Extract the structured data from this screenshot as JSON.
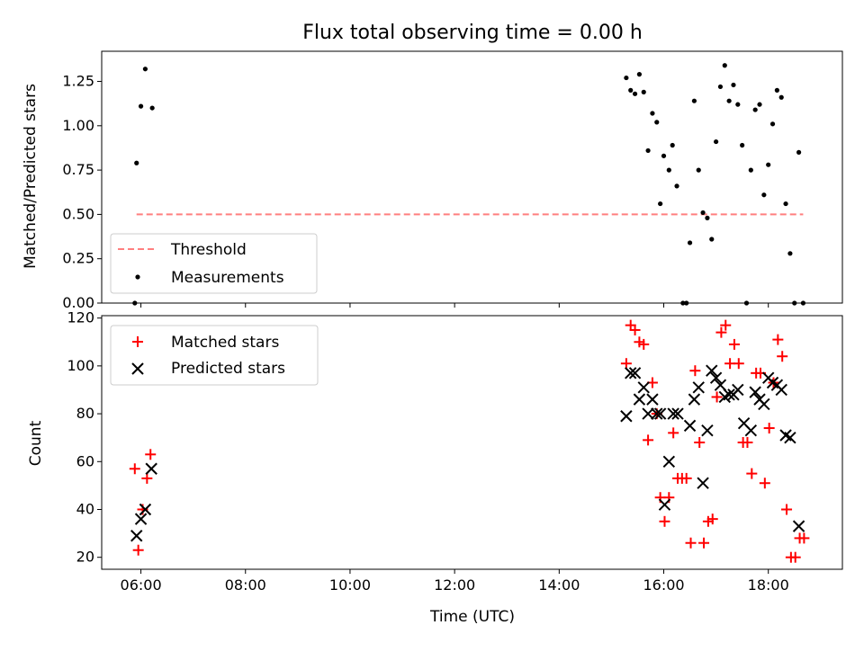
{
  "chart_data": [
    {
      "type": "scatter",
      "title": "Flux total observing time = 0.00 h",
      "xlabel": "",
      "ylabel": "Matched/Predicted stars",
      "xlim": [
        "05:15",
        "19:25"
      ],
      "ylim": [
        0,
        1.42
      ],
      "yticks": [
        "0.00",
        "0.25",
        "0.50",
        "0.75",
        "1.00",
        "1.25"
      ],
      "legend": {
        "position": "lower-left",
        "entries": [
          "Threshold",
          "Measurements"
        ]
      },
      "colors": {
        "threshold": "#ff7f7f",
        "measurements": "#000000"
      },
      "threshold": {
        "name": "Threshold",
        "value": 0.5,
        "x": [
          "05:55",
          "18:40"
        ]
      },
      "series": [
        {
          "name": "Measurements",
          "marker": "dot",
          "points": [
            [
              "05:53",
              0.0
            ],
            [
              "05:55",
              0.79
            ],
            [
              "06:00",
              1.11
            ],
            [
              "06:05",
              1.32
            ],
            [
              "06:13",
              1.1
            ],
            [
              "15:17",
              1.27
            ],
            [
              "15:22",
              1.2
            ],
            [
              "15:27",
              1.18
            ],
            [
              "15:32",
              1.29
            ],
            [
              "15:37",
              1.19
            ],
            [
              "15:42",
              0.86
            ],
            [
              "15:47",
              1.07
            ],
            [
              "15:52",
              1.02
            ],
            [
              "15:56",
              0.56
            ],
            [
              "16:00",
              0.83
            ],
            [
              "16:06",
              0.75
            ],
            [
              "16:10",
              0.89
            ],
            [
              "16:15",
              0.66
            ],
            [
              "16:22",
              0.0
            ],
            [
              "16:26",
              0.0
            ],
            [
              "16:30",
              0.34
            ],
            [
              "16:35",
              1.14
            ],
            [
              "16:40",
              0.75
            ],
            [
              "16:45",
              0.51
            ],
            [
              "16:50",
              0.48
            ],
            [
              "16:55",
              0.36
            ],
            [
              "17:00",
              0.91
            ],
            [
              "17:05",
              1.22
            ],
            [
              "17:10",
              1.34
            ],
            [
              "17:15",
              1.14
            ],
            [
              "17:20",
              1.23
            ],
            [
              "17:25",
              1.12
            ],
            [
              "17:30",
              0.89
            ],
            [
              "17:35",
              0.0
            ],
            [
              "17:40",
              0.75
            ],
            [
              "17:45",
              1.09
            ],
            [
              "17:50",
              1.12
            ],
            [
              "17:55",
              0.61
            ],
            [
              "18:00",
              0.78
            ],
            [
              "18:05",
              1.01
            ],
            [
              "18:10",
              1.2
            ],
            [
              "18:15",
              1.16
            ],
            [
              "18:20",
              0.56
            ],
            [
              "18:25",
              0.28
            ],
            [
              "18:30",
              0.0
            ],
            [
              "18:35",
              0.85
            ],
            [
              "18:40",
              0.0
            ]
          ]
        }
      ]
    },
    {
      "type": "scatter",
      "title": "",
      "xlabel": "Time (UTC)",
      "ylabel": "Count",
      "xlim": [
        "05:15",
        "19:25"
      ],
      "ylim": [
        15,
        121
      ],
      "yticks": [
        "20",
        "40",
        "60",
        "80",
        "100",
        "120"
      ],
      "xticks": [
        "06:00",
        "08:00",
        "10:00",
        "12:00",
        "14:00",
        "16:00",
        "18:00"
      ],
      "legend": {
        "position": "upper-left",
        "entries": [
          "Matched stars",
          "Predicted stars"
        ]
      },
      "colors": {
        "matched": "#ff0000",
        "predicted": "#000000"
      },
      "series": [
        {
          "name": "Matched stars",
          "marker": "plus",
          "points": [
            [
              "05:53",
              57
            ],
            [
              "05:57",
              23
            ],
            [
              "06:02",
              40
            ],
            [
              "06:07",
              53
            ],
            [
              "06:11",
              63
            ],
            [
              "15:17",
              101
            ],
            [
              "15:22",
              117
            ],
            [
              "15:27",
              115
            ],
            [
              "15:32",
              110
            ],
            [
              "15:37",
              109
            ],
            [
              "15:42",
              69
            ],
            [
              "15:47",
              93
            ],
            [
              "15:52",
              80
            ],
            [
              "15:56",
              45
            ],
            [
              "16:01",
              35
            ],
            [
              "16:06",
              45
            ],
            [
              "16:11",
              72
            ],
            [
              "16:16",
              53
            ],
            [
              "16:21",
              53
            ],
            [
              "16:26",
              53
            ],
            [
              "16:31",
              26
            ],
            [
              "16:36",
              98
            ],
            [
              "16:41",
              68
            ],
            [
              "16:46",
              26
            ],
            [
              "16:51",
              35
            ],
            [
              "16:56",
              36
            ],
            [
              "17:01",
              87
            ],
            [
              "17:06",
              114
            ],
            [
              "17:11",
              117
            ],
            [
              "17:16",
              101
            ],
            [
              "17:21",
              109
            ],
            [
              "17:26",
              101
            ],
            [
              "17:31",
              68
            ],
            [
              "17:36",
              68
            ],
            [
              "17:41",
              55
            ],
            [
              "17:46",
              97
            ],
            [
              "17:51",
              97
            ],
            [
              "17:56",
              51
            ],
            [
              "18:01",
              74
            ],
            [
              "18:06",
              93
            ],
            [
              "18:11",
              111
            ],
            [
              "18:16",
              104
            ],
            [
              "18:21",
              40
            ],
            [
              "18:26",
              20
            ],
            [
              "18:31",
              20
            ],
            [
              "18:36",
              28
            ],
            [
              "18:41",
              28
            ]
          ]
        },
        {
          "name": "Predicted stars",
          "marker": "x",
          "points": [
            [
              "05:55",
              29
            ],
            [
              "06:00",
              36
            ],
            [
              "06:05",
              40
            ],
            [
              "06:12",
              57
            ],
            [
              "15:17",
              79
            ],
            [
              "15:22",
              97
            ],
            [
              "15:27",
              97
            ],
            [
              "15:32",
              86
            ],
            [
              "15:37",
              91
            ],
            [
              "15:42",
              80
            ],
            [
              "15:47",
              86
            ],
            [
              "15:52",
              80
            ],
            [
              "15:56",
              80
            ],
            [
              "16:01",
              42
            ],
            [
              "16:06",
              60
            ],
            [
              "16:11",
              80
            ],
            [
              "16:16",
              80
            ],
            [
              "16:30",
              75
            ],
            [
              "16:35",
              86
            ],
            [
              "16:40",
              91
            ],
            [
              "16:45",
              51
            ],
            [
              "16:50",
              73
            ],
            [
              "16:55",
              98
            ],
            [
              "17:00",
              95
            ],
            [
              "17:05",
              92
            ],
            [
              "17:10",
              87
            ],
            [
              "17:15",
              88
            ],
            [
              "17:20",
              88
            ],
            [
              "17:25",
              90
            ],
            [
              "17:32",
              76
            ],
            [
              "17:40",
              73
            ],
            [
              "17:45",
              89
            ],
            [
              "17:50",
              86
            ],
            [
              "17:55",
              84
            ],
            [
              "18:00",
              95
            ],
            [
              "18:05",
              93
            ],
            [
              "18:10",
              92
            ],
            [
              "18:15",
              90
            ],
            [
              "18:20",
              71
            ],
            [
              "18:25",
              70
            ],
            [
              "18:35",
              33
            ]
          ]
        }
      ]
    }
  ]
}
